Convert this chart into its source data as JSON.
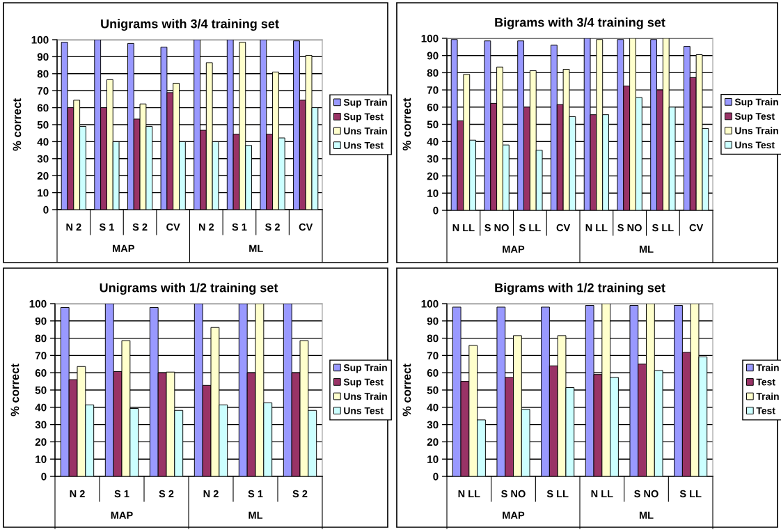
{
  "chart_data": [
    {
      "type": "bar",
      "title": "Unigrams with 3/4 training set",
      "ylabel": "% correct",
      "categories": [
        "N 2",
        "S 1",
        "S 2",
        "CV",
        "N 2",
        "S 1",
        "S 2",
        "CV"
      ],
      "annotations": [
        "MAP",
        "ML"
      ],
      "ylim": [
        0,
        100
      ],
      "yticks": [
        0,
        10,
        20,
        30,
        40,
        50,
        60,
        70,
        80,
        90,
        100
      ],
      "grid": "y",
      "legend": "right",
      "series": [
        {
          "name": "Sup Train",
          "color": "#9999ff",
          "values": [
            98.5,
            100,
            97.8,
            95.6,
            100,
            100,
            100,
            99.3
          ]
        },
        {
          "name": "Sup Test",
          "color": "#993366",
          "values": [
            60,
            60,
            53.3,
            68.9,
            46.7,
            44.4,
            44.4,
            64.4
          ]
        },
        {
          "name": "Uns Train",
          "color": "#ffffcc",
          "values": [
            64.4,
            76.5,
            62.2,
            74.4,
            86.5,
            98.5,
            81,
            90.8
          ]
        },
        {
          "name": "Uns Test",
          "color": "#ccffff",
          "values": [
            49,
            40,
            49,
            40,
            40,
            37.8,
            42.2,
            60
          ]
        }
      ]
    },
    {
      "type": "bar",
      "title": "Bigrams with 3/4 training set",
      "ylabel": "% correct",
      "categories": [
        "N LL",
        "S NO",
        "S LL",
        "CV",
        "N LL",
        "S NO",
        "S LL",
        "CV"
      ],
      "annotations": [
        "MAP",
        "ML"
      ],
      "ylim": [
        0,
        100
      ],
      "yticks": [
        0,
        10,
        20,
        30,
        40,
        50,
        60,
        70,
        80,
        90,
        100
      ],
      "grid": "y",
      "legend": "right",
      "series": [
        {
          "name": "Sup Train",
          "color": "#9999ff",
          "values": [
            99.3,
            98.5,
            98.5,
            96,
            100,
            99.3,
            99.3,
            95.3
          ]
        },
        {
          "name": "Sup Test",
          "color": "#993366",
          "values": [
            52,
            62.2,
            60,
            61.5,
            55.6,
            72.3,
            70,
            77.2
          ]
        },
        {
          "name": "Uns Train",
          "color": "#ffffcc",
          "values": [
            79,
            83.3,
            81.2,
            82,
            99.3,
            100,
            100,
            90.5
          ]
        },
        {
          "name": "Uns Test",
          "color": "#ccffff",
          "values": [
            40.8,
            38,
            35,
            54.5,
            55.6,
            65.6,
            60,
            47.6
          ]
        }
      ]
    },
    {
      "type": "bar",
      "title": "Unigrams with 1/2 training set",
      "ylabel": "% correct",
      "categories": [
        "N 2",
        "S 1",
        "S 2",
        "N 2",
        "S 1",
        "S 2"
      ],
      "annotations": [
        "MAP",
        "ML"
      ],
      "ylim": [
        0,
        100
      ],
      "yticks": [
        0,
        10,
        20,
        30,
        40,
        50,
        60,
        70,
        80,
        90,
        100
      ],
      "grid": "y",
      "legend": "right",
      "series": [
        {
          "name": "Sup Train",
          "color": "#9999ff",
          "values": [
            97.8,
            100,
            97.8,
            100,
            100,
            100
          ]
        },
        {
          "name": "Sup Test",
          "color": "#993366",
          "values": [
            56,
            60.7,
            60,
            52.7,
            60,
            60
          ]
        },
        {
          "name": "Uns Train",
          "color": "#ffffcc",
          "values": [
            63.6,
            78.6,
            60.4,
            86.2,
            100,
            78.6
          ]
        },
        {
          "name": "Uns Test",
          "color": "#ccffff",
          "values": [
            41.4,
            39.3,
            38.2,
            41.4,
            42.6,
            38.2
          ]
        }
      ]
    },
    {
      "type": "bar",
      "title": "Bigrams with 1/2 training set",
      "ylabel": "% correct",
      "categories": [
        "N LL",
        "S NO",
        "S LL",
        "N LL",
        "S NO",
        "S LL"
      ],
      "annotations": [
        "MAP",
        "ML"
      ],
      "ylim": [
        0,
        100
      ],
      "yticks": [
        0,
        10,
        20,
        30,
        40,
        50,
        60,
        70,
        80,
        90,
        100
      ],
      "grid": "y",
      "legend": "right",
      "series": [
        {
          "name": "Train",
          "color": "#9999ff",
          "values": [
            98,
            98,
            98,
            99,
            99,
            99
          ]
        },
        {
          "name": "Test",
          "color": "#993366",
          "values": [
            55,
            57.3,
            64,
            59,
            65,
            71.8
          ]
        },
        {
          "name": "Train",
          "color": "#ffffcc",
          "values": [
            75.8,
            81.5,
            81.5,
            100,
            100,
            100
          ]
        },
        {
          "name": "Test",
          "color": "#ccffff",
          "values": [
            32.7,
            38.8,
            51.4,
            57.3,
            61.3,
            69.2
          ]
        }
      ]
    }
  ]
}
